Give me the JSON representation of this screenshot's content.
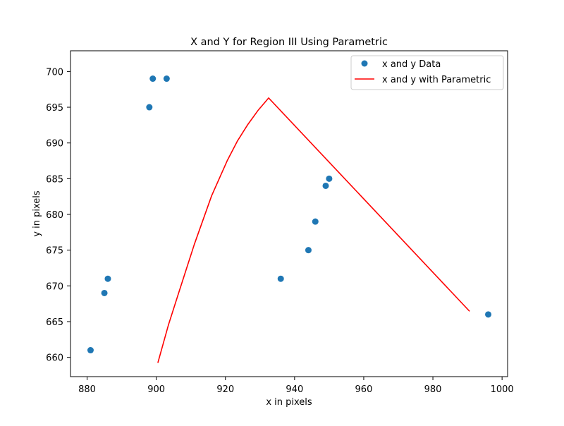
{
  "chart_data": {
    "type": "scatter",
    "title": "X and Y for Region III Using Parametric",
    "xlabel": "x in pixels",
    "ylabel": "y in pixels",
    "xlim": [
      875.2,
      1001.6
    ],
    "ylim": [
      657.3,
      702.9
    ],
    "xticks": [
      880,
      900,
      920,
      940,
      960,
      980,
      1000
    ],
    "yticks": [
      660,
      665,
      670,
      675,
      680,
      685,
      690,
      695,
      700
    ],
    "xtick_labels": [
      "880",
      "900",
      "920",
      "940",
      "960",
      "980",
      "1000"
    ],
    "ytick_labels": [
      "660",
      "665",
      "670",
      "675",
      "680",
      "685",
      "690",
      "695",
      "700"
    ],
    "grid": false,
    "legend_position": "upper right",
    "series": [
      {
        "name": "x and y Data",
        "kind": "scatter",
        "color": "#1f77b4",
        "x": [
          881,
          885,
          886,
          898,
          899,
          903,
          936,
          944,
          946,
          949,
          950,
          996
        ],
        "y": [
          661,
          669,
          671,
          695,
          699,
          699,
          671,
          675,
          679,
          684,
          685,
          666
        ]
      },
      {
        "name": "x and y with Parametric",
        "kind": "line",
        "color": "#ff0000",
        "x": [
          900.5,
          903.5,
          907,
          911,
          916,
          920.5,
          923.5,
          926.5,
          929.5,
          932.5,
          990.5
        ],
        "y": [
          659.3,
          664.5,
          669.8,
          675.8,
          682.6,
          687.5,
          690.3,
          692.6,
          694.6,
          696.3,
          666.5
        ]
      }
    ]
  }
}
